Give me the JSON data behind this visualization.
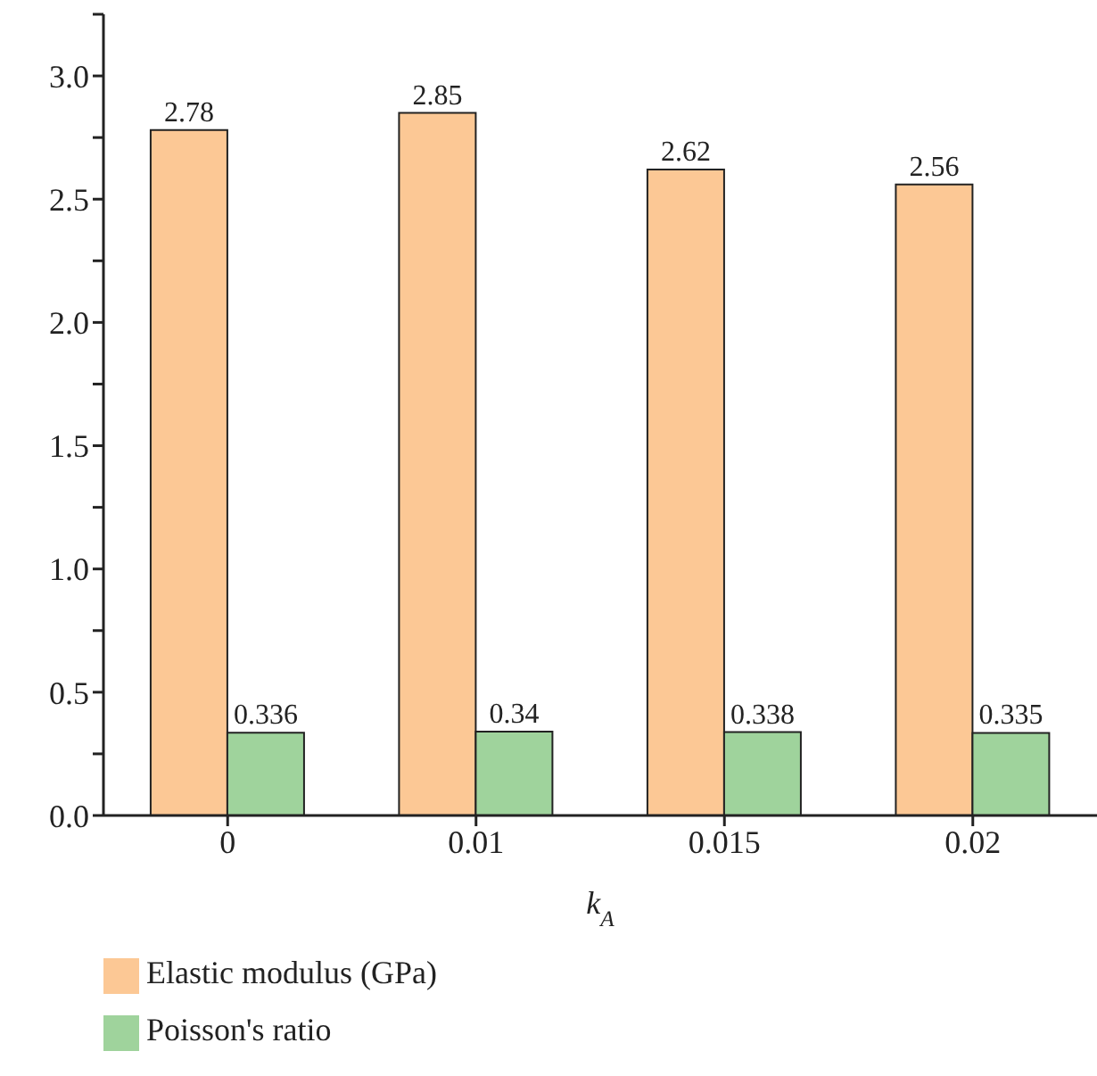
{
  "chart_data": {
    "type": "bar",
    "xlabel": "k$_{A}$",
    "categories": [
      "0",
      "0.01",
      "0.015",
      "0.02"
    ],
    "series": [
      {
        "name": "Elastic modulus (GPa)",
        "color": "#fcc895",
        "values": [
          2.78,
          2.85,
          2.62,
          2.56
        ]
      },
      {
        "name": "Poisson's ratio",
        "color": "#9fd39c",
        "values": [
          0.336,
          0.34,
          0.338,
          0.335
        ]
      }
    ],
    "ylim": [
      0,
      3.25
    ],
    "yticks": [
      "0.0",
      {
        "value": 0.25,
        "label": null
      },
      {
        "value": 0.5,
        "label": "0.5"
      },
      {
        "value": 0.75,
        "label": null
      },
      {
        "value": 1,
        "label": "1.0"
      },
      {
        "value": 1.25,
        "label": null
      },
      {
        "value": 1.5,
        "label": "1.5"
      },
      {
        "value": 1.75,
        "label": null
      },
      {
        "value": 2,
        "label": "2.0"
      },
      {
        "value": 2.25,
        "label": null
      },
      {
        "value": 2.5,
        "label": "2.5"
      },
      {
        "value": 2.75,
        "label": null
      },
      {
        "value": 3,
        "label": "3.0"
      },
      {
        "value": 3.25,
        "label": null
      }
    ],
    "data_labels": true,
    "legend": "bottom left",
    "grid": false
  }
}
